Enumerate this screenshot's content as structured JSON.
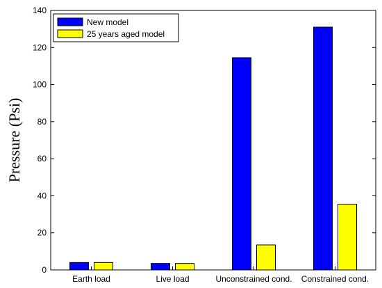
{
  "chart_data": {
    "type": "bar",
    "ylabel": "Pressure (Psi)",
    "xlabel": "",
    "ylim": [
      0,
      140
    ],
    "yticks": [
      0,
      20,
      40,
      60,
      80,
      100,
      120,
      140
    ],
    "categories": [
      "Earth load",
      "Live load",
      "Unconstrained cond.",
      "Constrained cond."
    ],
    "series": [
      {
        "name": "New model",
        "color": "#0000ff",
        "values": [
          4,
          3.5,
          114.5,
          131
        ]
      },
      {
        "name": "25 years aged model",
        "color": "#ffff00",
        "values": [
          4,
          3.5,
          13.5,
          35.5
        ]
      }
    ],
    "legend_position": "top-left",
    "grid": false
  }
}
